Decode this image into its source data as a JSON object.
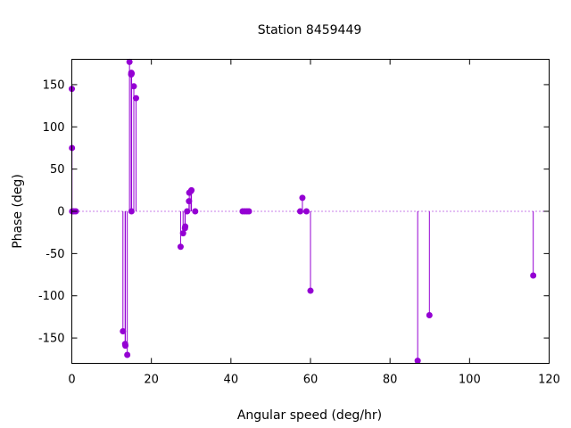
{
  "chart_data": {
    "type": "scatter",
    "title": "Station 8459449",
    "xlabel": "Angular speed (deg/hr)",
    "ylabel": "Phase (deg)",
    "xlim": [
      0,
      120
    ],
    "ylim": [
      -180,
      180
    ],
    "xticks": [
      0,
      20,
      40,
      60,
      80,
      100,
      120
    ],
    "yticks": [
      -150,
      -100,
      -50,
      0,
      50,
      100,
      150
    ],
    "grid": false,
    "legend": "none",
    "style": "impulses with points",
    "zero_line": true,
    "color": "#9400d3",
    "zero_line_color": "#9400d3",
    "points": [
      [
        0.0,
        145
      ],
      [
        0.04,
        75
      ],
      [
        0.08,
        0
      ],
      [
        0.5,
        0
      ],
      [
        1.0,
        0
      ],
      [
        12.85,
        -142
      ],
      [
        13.4,
        -157
      ],
      [
        13.47,
        -159
      ],
      [
        13.94,
        -170
      ],
      [
        14.5,
        177
      ],
      [
        14.92,
        162
      ],
      [
        14.96,
        164
      ],
      [
        15.0,
        0
      ],
      [
        15.04,
        163
      ],
      [
        15.59,
        148
      ],
      [
        16.14,
        134
      ],
      [
        27.35,
        -42
      ],
      [
        27.97,
        -26
      ],
      [
        28.44,
        -20
      ],
      [
        28.51,
        -18
      ],
      [
        28.98,
        0
      ],
      [
        29.46,
        12
      ],
      [
        29.53,
        22
      ],
      [
        29.96,
        24
      ],
      [
        30.08,
        25
      ],
      [
        31.02,
        0
      ],
      [
        42.93,
        0
      ],
      [
        43.48,
        0
      ],
      [
        44.03,
        0
      ],
      [
        44.53,
        0
      ],
      [
        57.42,
        0
      ],
      [
        57.97,
        16
      ],
      [
        58.98,
        0
      ],
      [
        60.0,
        -94
      ],
      [
        86.95,
        -177
      ],
      [
        89.9,
        -123
      ],
      [
        116.0,
        -76
      ]
    ]
  }
}
